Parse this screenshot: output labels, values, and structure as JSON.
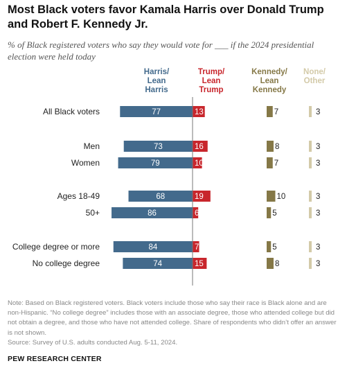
{
  "title": "Most Black voters favor Kamala Harris over Donald Trump and Robert F. Kennedy Jr.",
  "subtitle": "% of Black registered voters who say they would vote for ___ if the 2024 presidential election were held today",
  "note": "Note: Based on Black registered voters. Black voters include those who say their race is Black alone and are non-Hispanic. “No college degree” includes those with an associate degree, those who attended college but did not obtain a degree, and those who have not attended college. Share of respondents who didn’t offer an answer is not shown.",
  "source": "Source: Survey of U.S. adults conducted Aug. 5-11, 2024.",
  "brand": "PEW RESEARCH CENTER",
  "colors": {
    "harris": "#436a8c",
    "trump": "#c8262c",
    "kennedy": "#857847",
    "none": "#d3caa8"
  },
  "chart_data": {
    "type": "bar",
    "legend_placement": "top",
    "columns": [
      {
        "key": "harris",
        "label": [
          "Harris/",
          "Lean",
          "Harris"
        ]
      },
      {
        "key": "trump",
        "label": [
          "Trump/",
          "Lean",
          "Trump"
        ]
      },
      {
        "key": "kennedy",
        "label": [
          "Kennedy/",
          "Lean",
          "Kennedy"
        ]
      },
      {
        "key": "none",
        "label": [
          "None/",
          "Other"
        ]
      }
    ],
    "categories": [
      "All Black voters",
      "Men",
      "Women",
      "Ages 18-49",
      "50+",
      "College degree or more",
      "No college degree"
    ],
    "series": [
      {
        "name": "Harris/Lean Harris",
        "key": "harris",
        "values": [
          77,
          73,
          79,
          68,
          86,
          84,
          74
        ]
      },
      {
        "name": "Trump/Lean Trump",
        "key": "trump",
        "values": [
          13,
          16,
          10,
          19,
          6,
          7,
          15
        ]
      },
      {
        "name": "Kennedy/Lean Kennedy",
        "key": "kennedy",
        "values": [
          7,
          8,
          7,
          10,
          5,
          5,
          8
        ]
      },
      {
        "name": "None/Other",
        "key": "none",
        "values": [
          3,
          3,
          3,
          3,
          3,
          3,
          3
        ]
      }
    ]
  }
}
